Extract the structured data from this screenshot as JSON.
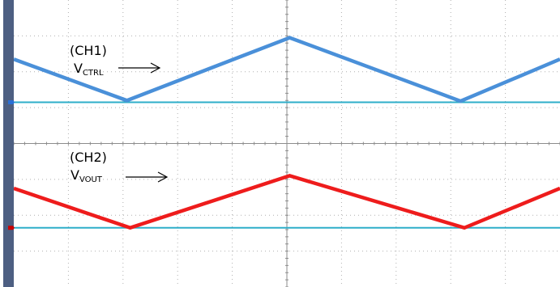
{
  "chart_data": {
    "type": "line",
    "title": "",
    "grid": true,
    "divisions": {
      "x": 10,
      "y": 8
    },
    "x_range": [
      0,
      10
    ],
    "y_range": [
      0,
      8
    ],
    "channels": [
      {
        "name_line1": "(CH1)",
        "name_line2_main": "V",
        "name_line2_sub": "CTRL",
        "color": "#4a90d9",
        "marker_color": "#2a6fd6",
        "baseline_y": 5.15,
        "points": [
          [
            0,
            6.35
          ],
          [
            2.07,
            5.2
          ],
          [
            5.05,
            6.95
          ],
          [
            8.18,
            5.18
          ],
          [
            10,
            6.35
          ]
        ]
      },
      {
        "name_line1": "(CH2)",
        "name_line2_main": "V",
        "name_line2_sub": "VOUT",
        "color": "#ee1c1c",
        "marker_color": "#cc0000",
        "baseline_y": 1.65,
        "points": [
          [
            0,
            2.75
          ],
          [
            2.13,
            1.65
          ],
          [
            5.05,
            3.1
          ],
          [
            8.25,
            1.65
          ],
          [
            10,
            2.75
          ]
        ]
      }
    ],
    "baseline_color": "#2eaec9"
  }
}
